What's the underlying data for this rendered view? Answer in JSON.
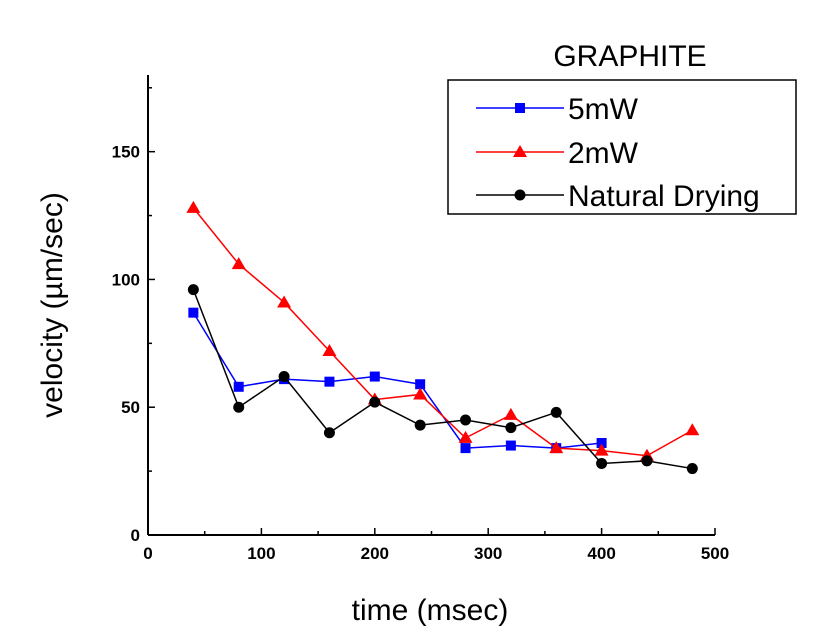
{
  "chart_data": {
    "type": "line",
    "title": "GRAPHITE",
    "xlabel": "time (msec)",
    "ylabel": "velocity (µm/sec)",
    "xlim": [
      0,
      500
    ],
    "ylim": [
      0,
      180
    ],
    "xticks": [
      0,
      100,
      200,
      300,
      400,
      500
    ],
    "yticks": [
      0,
      50,
      100,
      150
    ],
    "grid": false,
    "legend_position": "top-right",
    "series": [
      {
        "name": "5mW",
        "color": "#0000ff",
        "marker": "square",
        "x": [
          40,
          80,
          120,
          160,
          200,
          240,
          280,
          320,
          360,
          400
        ],
        "y": [
          87,
          58,
          61,
          60,
          62,
          59,
          34,
          35,
          34,
          36
        ]
      },
      {
        "name": "2mW",
        "color": "#ff0000",
        "marker": "triangle",
        "x": [
          40,
          80,
          120,
          160,
          200,
          240,
          280,
          320,
          360,
          400,
          440,
          480
        ],
        "y": [
          128,
          106,
          91,
          72,
          53,
          55,
          38,
          47,
          34,
          33,
          31,
          41
        ]
      },
      {
        "name": "Natural Drying",
        "color": "#000000",
        "marker": "circle",
        "x": [
          40,
          80,
          120,
          160,
          200,
          240,
          280,
          320,
          360,
          400,
          440,
          480
        ],
        "y": [
          96,
          50,
          62,
          40,
          52,
          43,
          45,
          42,
          48,
          28,
          29,
          26
        ]
      }
    ]
  }
}
